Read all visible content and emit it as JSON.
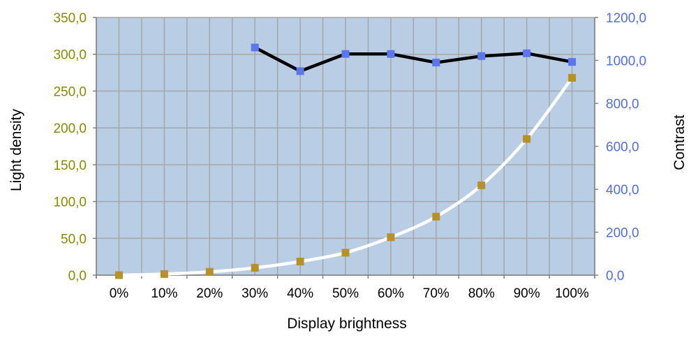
{
  "chart_data": {
    "type": "line",
    "xlabel": "Display brightness",
    "ylabel": "Light density",
    "y2label": "Contrast",
    "categories": [
      "0%",
      "10%",
      "20%",
      "30%",
      "40%",
      "50%",
      "60%",
      "70%",
      "80%",
      "90%",
      "100%"
    ],
    "ylim": [
      0,
      350
    ],
    "y2lim": [
      0,
      1200
    ],
    "yticks": [
      "0,0",
      "50,0",
      "100,0",
      "150,0",
      "200,0",
      "250,0",
      "300,0",
      "350,0"
    ],
    "y2ticks": [
      "0,0",
      "200,0",
      "400,0",
      "600,0",
      "800,0",
      "1000,0",
      "1200,0"
    ],
    "grid": true,
    "series": [
      {
        "axis": "left",
        "values": [
          0.0,
          1.5,
          4.5,
          10.0,
          18.5,
          30.5,
          51.5,
          79.5,
          122.0,
          185.0,
          268.0
        ]
      },
      {
        "axis": "right",
        "values": [
          null,
          null,
          null,
          1060,
          950,
          1030,
          1030,
          990,
          1020,
          1033,
          993
        ]
      }
    ],
    "colors": {
      "plot_bg": "#b9cde5",
      "grid": "#a6a6a6",
      "left_axis_text": "#8a8a00",
      "right_axis_text": "#4f6fe0",
      "density_line": "#ffffff",
      "density_marker": "#b8902a",
      "contrast_line": "#000000",
      "contrast_marker": "#5b77ee"
    }
  }
}
